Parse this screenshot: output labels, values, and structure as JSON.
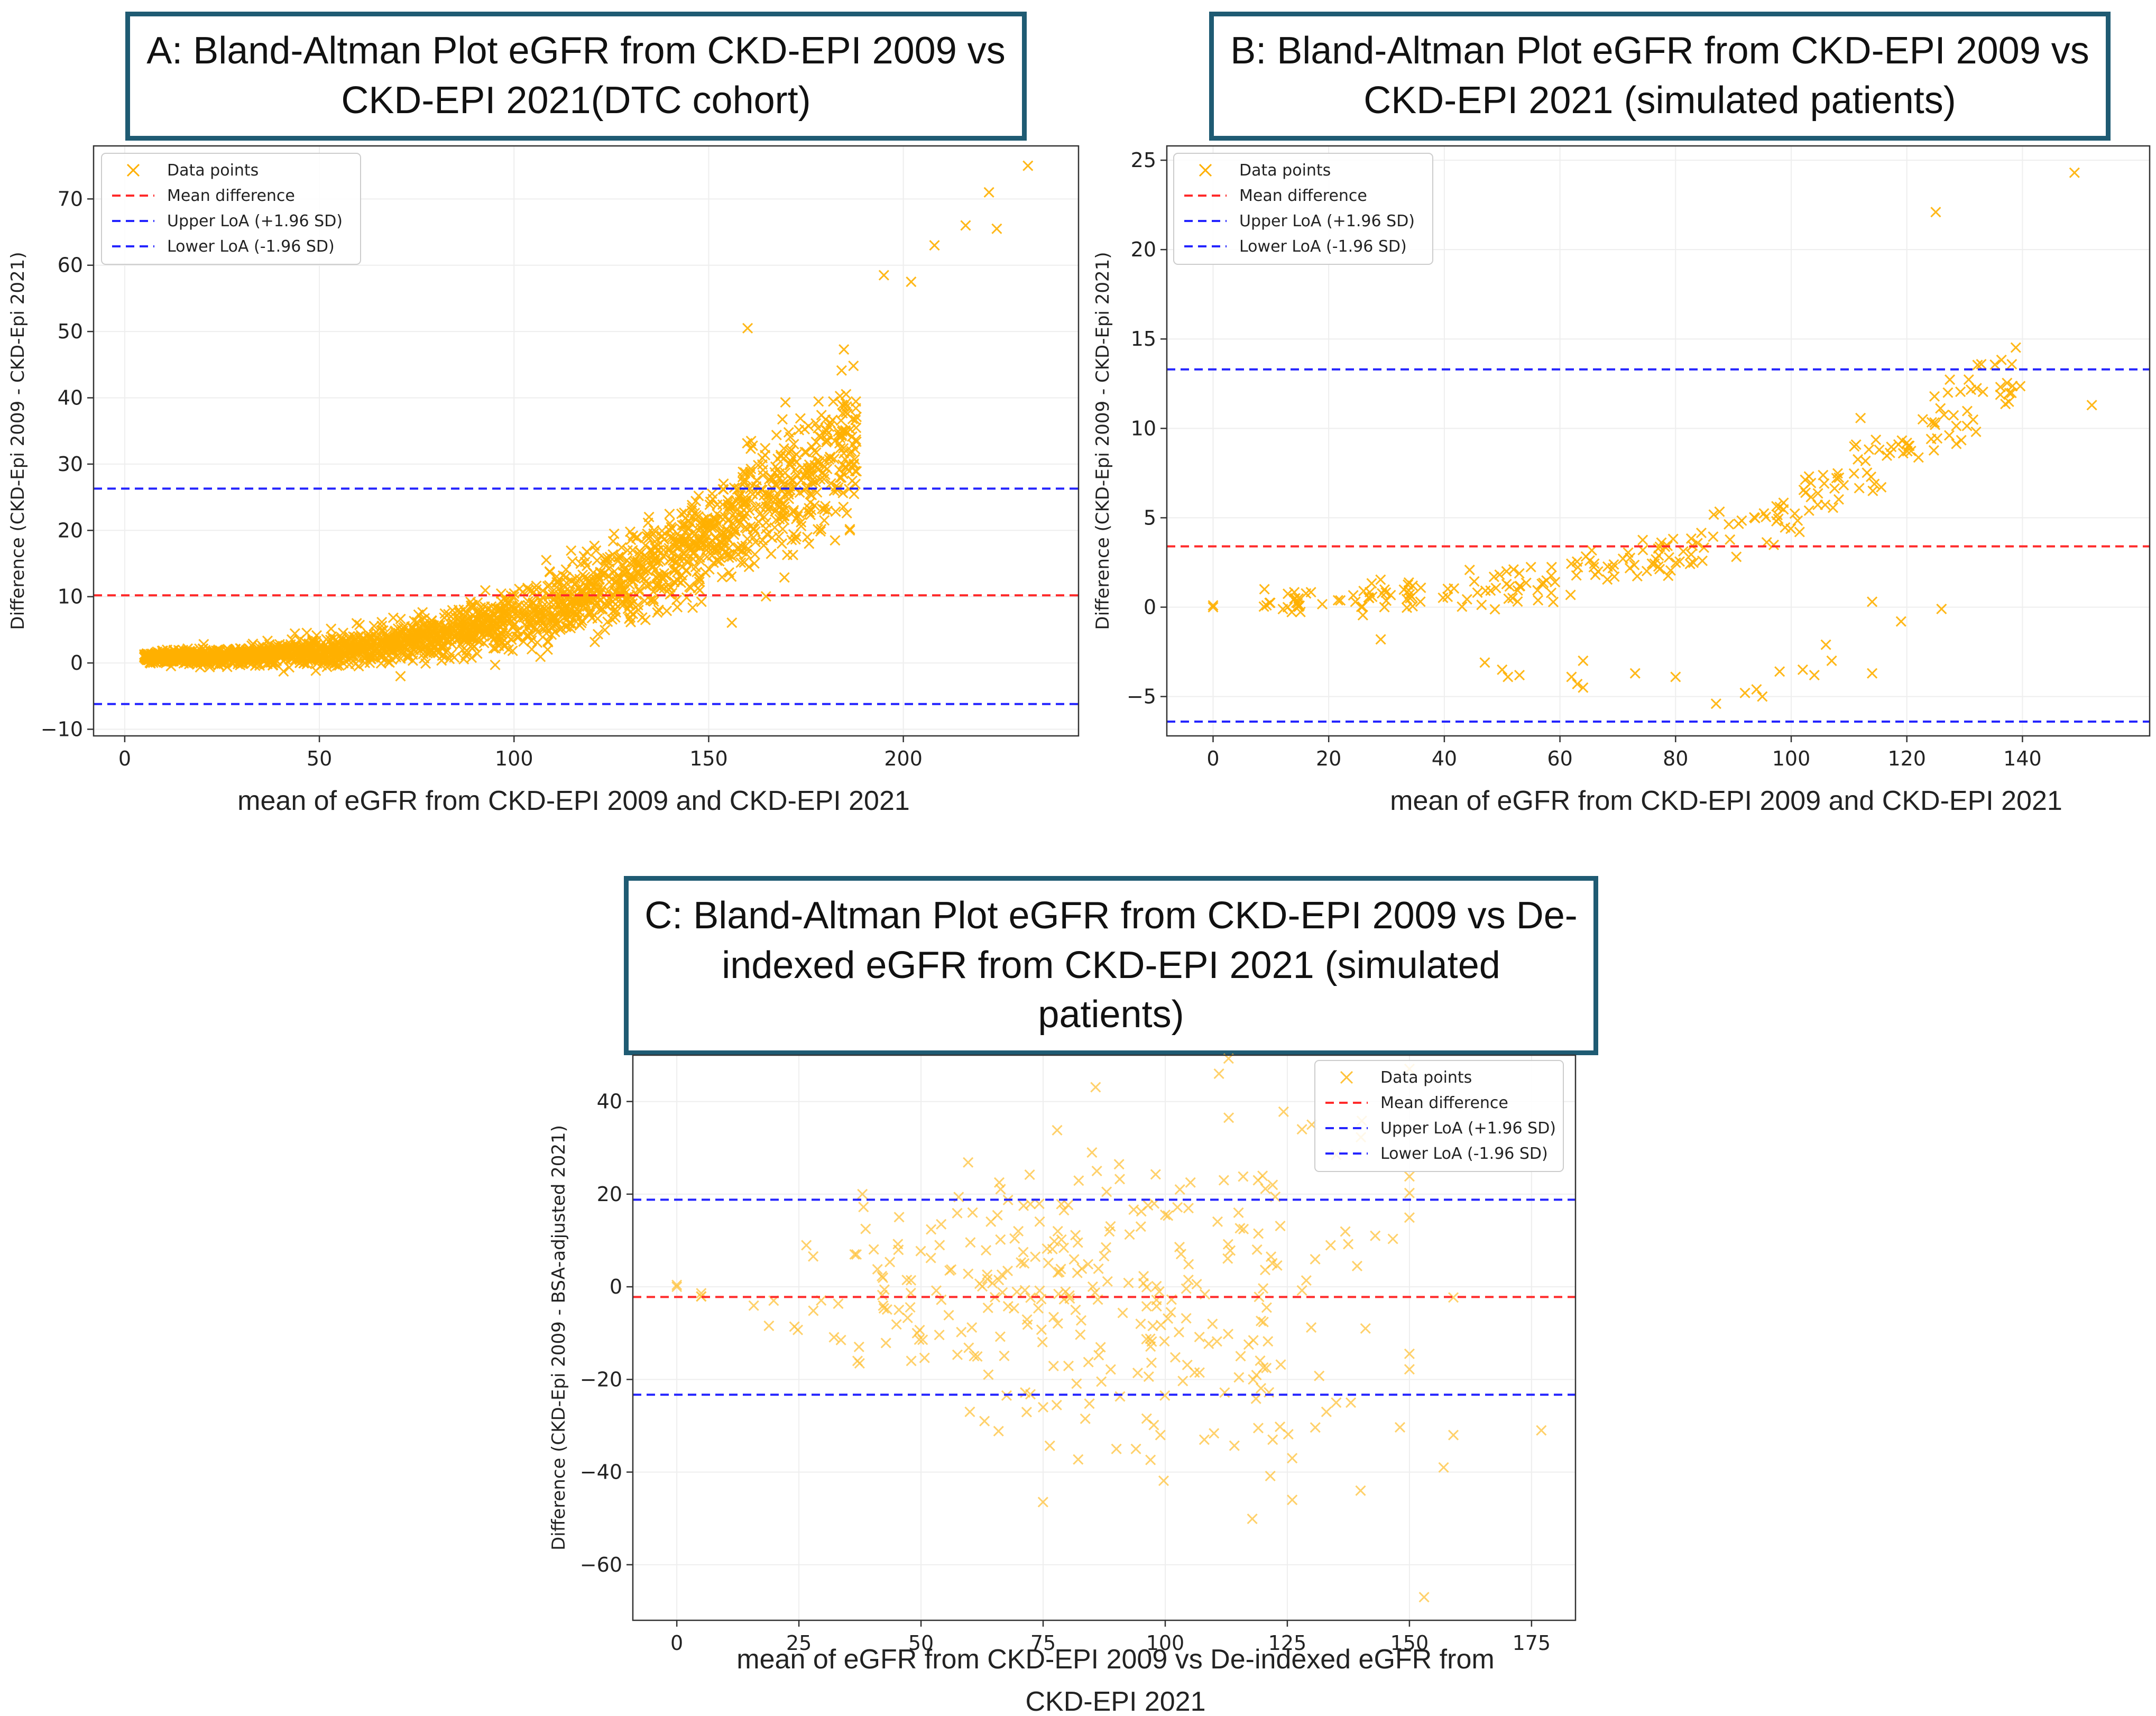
{
  "chart_data": [
    {
      "id": "A",
      "type": "scatter",
      "title": "A: Bland-Altman Plot eGFR from CKD-EPI 2009 vs CKD-EPI 2021(DTC cohort)",
      "xlabel": "mean of eGFR from CKD-EPI 2009 and CKD-EPI 2021",
      "ylabel": "Difference (CKD-Epi 2009 - CKD-Epi 2021)",
      "xlim": [
        -8,
        245
      ],
      "ylim": [
        -11,
        78
      ],
      "xticks": [
        0,
        50,
        100,
        150,
        200
      ],
      "yticks": [
        -10,
        0,
        10,
        20,
        30,
        40,
        50,
        60,
        70
      ],
      "grid": true,
      "legend_position": "top-left",
      "legend": [
        "Data points",
        "Mean difference",
        "Upper LoA (+1.96 SD)",
        "Lower LoA (-1.96 SD)"
      ],
      "mean_difference": 10.2,
      "upper_loa": 26.3,
      "lower_loa": -6.2,
      "trend": {
        "x_range": [
          5,
          232
        ],
        "model": "power",
        "a": 0.9,
        "b": 1.45e-05,
        "p": 2.8,
        "spread": 2.5
      },
      "point_count": 2400,
      "points": [
        [
          222,
          71
        ],
        [
          232,
          75
        ],
        [
          224,
          65.5
        ],
        [
          216,
          66
        ],
        [
          208,
          63
        ],
        [
          202,
          57.5
        ],
        [
          195,
          58.5
        ],
        [
          160,
          50.5
        ],
        [
          40,
          1
        ]
      ],
      "colors": {
        "points": "#ffb000",
        "mean": "#ff2a2a",
        "loa": "#2424ff"
      }
    },
    {
      "id": "B",
      "type": "scatter",
      "title": "B: Bland-Altman Plot eGFR from CKD-EPI 2009 vs CKD-EPI 2021 (simulated patients)",
      "xlabel": "mean of eGFR from CKD-EPI 2009 and CKD-EPI 2021",
      "ylabel": "Difference (CKD-Epi 2009 - CKD-Epi 2021)",
      "xlim": [
        -8,
        162
      ],
      "ylim": [
        -7.2,
        25.8
      ],
      "xticks": [
        0,
        20,
        40,
        60,
        80,
        100,
        120,
        140
      ],
      "yticks": [
        -5,
        0,
        5,
        10,
        15,
        20,
        25
      ],
      "grid": true,
      "legend_position": "top-left",
      "legend": [
        "Data points",
        "Mean difference",
        "Upper LoA (+1.96 SD)",
        "Lower LoA (-1.96 SD)"
      ],
      "mean_difference": 3.4,
      "upper_loa": 13.3,
      "lower_loa": -6.4,
      "trend": {
        "x_range": [
          8,
          140
        ],
        "model": "power",
        "a": 0.4,
        "b": 1.3e-05,
        "p": 2.8,
        "spread": 0.6
      },
      "point_count": 260,
      "points": [
        [
          0,
          0
        ],
        [
          0,
          0.1
        ],
        [
          29,
          -1.8
        ],
        [
          47,
          -3.1
        ],
        [
          50,
          -3.5
        ],
        [
          51,
          -3.9
        ],
        [
          53,
          -3.8
        ],
        [
          62,
          -3.9
        ],
        [
          63,
          -4.3
        ],
        [
          64,
          -3
        ],
        [
          64,
          -4.5
        ],
        [
          73,
          -3.7
        ],
        [
          80,
          -3.9
        ],
        [
          87,
          -5.4
        ],
        [
          92,
          -4.8
        ],
        [
          94,
          -4.6
        ],
        [
          95,
          -5
        ],
        [
          98,
          -3.6
        ],
        [
          102,
          -3.5
        ],
        [
          104,
          -3.8
        ],
        [
          106,
          -2.1
        ],
        [
          107,
          -3
        ],
        [
          114,
          -3.7
        ],
        [
          114,
          0.3
        ],
        [
          119,
          -0.8
        ],
        [
          126,
          -0.1
        ],
        [
          125,
          22.1
        ],
        [
          149,
          24.3
        ],
        [
          152,
          11.3
        ]
      ],
      "colors": {
        "points": "#ffb000",
        "mean": "#ff2a2a",
        "loa": "#2424ff"
      }
    },
    {
      "id": "C",
      "type": "scatter",
      "title": "C: Bland-Altman Plot eGFR from CKD-EPI 2009 vs De-indexed eGFR from CKD-EPI 2021 (simulated patients)",
      "xlabel": "mean of eGFR from CKD-EPI 2009 vs  De-indexed eGFR from CKD-EPI 2021",
      "ylabel": "Difference (CKD-Epi 2009 - BSA-adjusted 2021)",
      "xlim": [
        -9,
        184
      ],
      "ylim": [
        -72,
        50
      ],
      "xticks": [
        0,
        25,
        50,
        75,
        100,
        125,
        150,
        175
      ],
      "yticks": [
        -60,
        -40,
        -20,
        0,
        20,
        40
      ],
      "grid": true,
      "legend_position": "top-right",
      "legend": [
        "Data points",
        "Mean difference",
        "Upper LoA (+1.96 SD)",
        "Lower LoA (-1.96 SD)"
      ],
      "mean_difference": -2.2,
      "upper_loa": 18.8,
      "lower_loa": -23.3,
      "point_count": 300,
      "points": [
        [
          0,
          0
        ],
        [
          0,
          0.4
        ],
        [
          111,
          46
        ],
        [
          113,
          36.5
        ],
        [
          128,
          34
        ],
        [
          130,
          35
        ],
        [
          135,
          28.5
        ],
        [
          85,
          29
        ],
        [
          86,
          25
        ],
        [
          88,
          20.5
        ],
        [
          38,
          20
        ],
        [
          71,
          17.5
        ],
        [
          143,
          11
        ],
        [
          126,
          -46
        ],
        [
          140,
          -44
        ],
        [
          153,
          -67
        ],
        [
          157,
          -39
        ],
        [
          159,
          -32
        ],
        [
          177,
          -31
        ],
        [
          159,
          -2.3
        ],
        [
          141,
          -9
        ],
        [
          119,
          23
        ],
        [
          115,
          16
        ],
        [
          122,
          22
        ],
        [
          112,
          23
        ],
        [
          103,
          21
        ],
        [
          95,
          13
        ],
        [
          60,
          -27
        ],
        [
          63,
          -29
        ],
        [
          75,
          -26
        ],
        [
          90,
          -35
        ],
        [
          94,
          -35
        ],
        [
          99,
          -32
        ],
        [
          108,
          -33
        ],
        [
          122,
          -33
        ],
        [
          126,
          -37
        ],
        [
          133,
          -27
        ],
        [
          138,
          -25
        ],
        [
          135,
          -25
        ],
        [
          37,
          -16
        ],
        [
          48,
          -16
        ],
        [
          78,
          12
        ],
        [
          82,
          3
        ],
        [
          118,
          -20
        ]
      ],
      "colors": {
        "points": "#ffc23a",
        "mean": "#ff2a2a",
        "loa": "#2424ff"
      }
    }
  ]
}
